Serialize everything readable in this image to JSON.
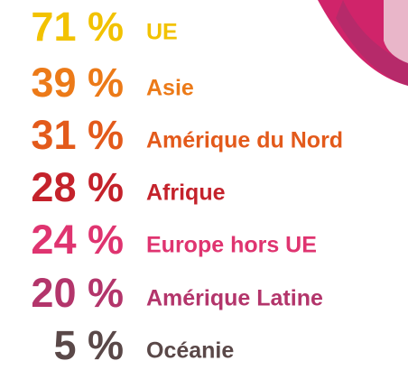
{
  "items": [
    {
      "percent": "71 %",
      "region": "UE",
      "color": "#f2c200"
    },
    {
      "percent": "39 %",
      "region": "Asie",
      "color": "#ec7a18"
    },
    {
      "percent": "31 %",
      "region": "Amérique du Nord",
      "color": "#e35a1b"
    },
    {
      "percent": "28 %",
      "region": "Afrique",
      "color": "#c4222b"
    },
    {
      "percent": "24 %",
      "region": "Europe hors UE",
      "color": "#df3470"
    },
    {
      "percent": "20 %",
      "region": "Amérique Latine",
      "color": "#b3356b"
    },
    {
      "percent": "5 %",
      "region": "Océanie",
      "color": "#5a4848"
    }
  ]
}
